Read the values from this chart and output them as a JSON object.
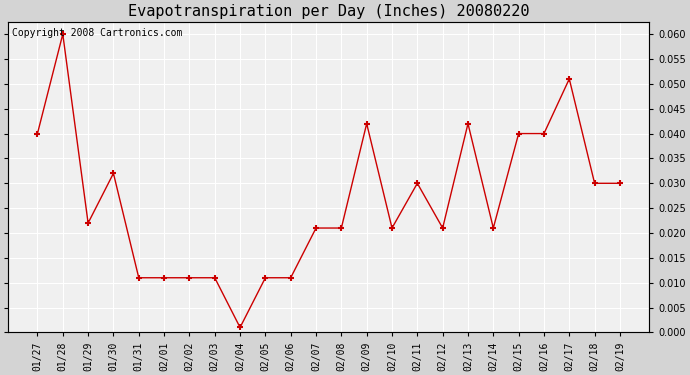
{
  "title": "Evapotranspiration per Day (Inches) 20080220",
  "copyright_text": "Copyright 2008 Cartronics.com",
  "labels": [
    "01/27",
    "01/28",
    "01/29",
    "01/30",
    "01/31",
    "02/01",
    "02/02",
    "02/03",
    "02/04",
    "02/05",
    "02/06",
    "02/07",
    "02/08",
    "02/09",
    "02/10",
    "02/11",
    "02/12",
    "02/13",
    "02/14",
    "02/15",
    "02/16",
    "02/17",
    "02/18",
    "02/19"
  ],
  "values": [
    0.04,
    0.06,
    0.022,
    0.032,
    0.011,
    0.011,
    0.011,
    0.011,
    0.001,
    0.011,
    0.011,
    0.021,
    0.021,
    0.042,
    0.021,
    0.03,
    0.021,
    0.042,
    0.021,
    0.04,
    0.04,
    0.051,
    0.03,
    0.03
  ],
  "line_color": "#cc0000",
  "marker": "+",
  "marker_size": 5,
  "marker_linewidth": 1.5,
  "line_width": 1.0,
  "ylim": [
    0.0,
    0.0625
  ],
  "yticks": [
    0.0,
    0.005,
    0.01,
    0.015,
    0.02,
    0.025,
    0.03,
    0.035,
    0.04,
    0.045,
    0.05,
    0.055,
    0.06
  ],
  "background_color": "#d4d4d4",
  "plot_bg_color": "#f0f0f0",
  "grid_color": "#ffffff",
  "title_fontsize": 11,
  "tick_fontsize": 7,
  "copyright_fontsize": 7
}
